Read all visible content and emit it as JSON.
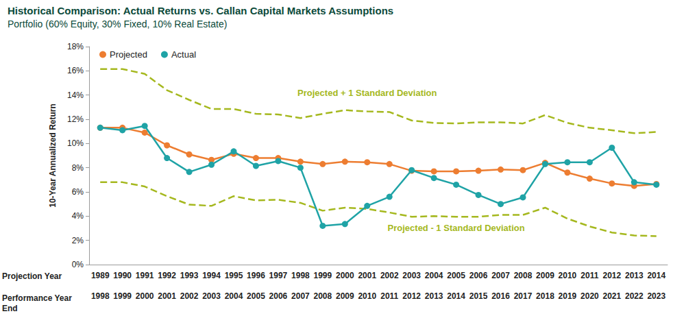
{
  "chart_data": {
    "type": "line",
    "title": "Historical Comparison: Actual Returns vs. Callan Capital Markets Assumptions",
    "subtitle": "Portfolio (60% Equity, 30% Fixed, 10% Real Estate)",
    "y_label": "10-Year Annualized Return",
    "x_row_labels": [
      "Projection Year",
      "Performance Year End"
    ],
    "categories": [
      "1989",
      "1990",
      "1991",
      "1992",
      "1993",
      "1994",
      "1995",
      "1996",
      "1997",
      "1998",
      "1999",
      "2000",
      "2001",
      "2002",
      "2003",
      "2004",
      "2005",
      "2006",
      "2007",
      "2008",
      "2009",
      "2010",
      "2011",
      "2012",
      "2013",
      "2014"
    ],
    "performance_years": [
      "1998",
      "1999",
      "2000",
      "2001",
      "2002",
      "2003",
      "2004",
      "2005",
      "2006",
      "2007",
      "2008",
      "2009",
      "2010",
      "2011",
      "2012",
      "2013",
      "2014",
      "2015",
      "2016",
      "2017",
      "2018",
      "2019",
      "2020",
      "2021",
      "2022",
      "2023"
    ],
    "series": [
      {
        "name": "Projected",
        "color": "#ED7D31",
        "marker": "circle",
        "line_style": "solid",
        "values": [
          11.3,
          11.3,
          10.9,
          9.85,
          9.1,
          8.65,
          9.15,
          8.8,
          8.8,
          8.5,
          8.3,
          8.5,
          8.45,
          8.3,
          7.75,
          7.7,
          7.7,
          7.75,
          7.85,
          7.8,
          8.4,
          7.6,
          7.1,
          6.7,
          6.5,
          6.65
        ]
      },
      {
        "name": "Actual",
        "color": "#1FA3A6",
        "marker": "circle",
        "line_style": "solid",
        "values": [
          11.3,
          11.1,
          11.45,
          8.8,
          7.65,
          8.25,
          9.35,
          8.15,
          8.55,
          8.0,
          3.2,
          3.35,
          4.85,
          5.6,
          7.8,
          7.15,
          6.6,
          5.75,
          5.0,
          5.55,
          8.3,
          8.45,
          8.45,
          9.65,
          6.8,
          6.6
        ]
      },
      {
        "name": "Projected + 1 Standard Deviation",
        "color": "#A5B81E",
        "marker": "none",
        "line_style": "dashed",
        "values": [
          16.15,
          16.15,
          15.75,
          14.4,
          13.6,
          12.85,
          12.85,
          12.45,
          12.4,
          12.1,
          12.45,
          12.75,
          12.65,
          12.6,
          11.9,
          11.7,
          11.65,
          11.75,
          11.75,
          11.65,
          12.35,
          11.7,
          11.3,
          11.1,
          10.85,
          10.95
        ]
      },
      {
        "name": "Projected - 1 Standard Deviation",
        "color": "#A5B81E",
        "marker": "none",
        "line_style": "dashed",
        "values": [
          6.8,
          6.8,
          6.45,
          5.65,
          4.95,
          4.85,
          5.65,
          5.3,
          5.35,
          5.1,
          4.45,
          4.7,
          4.6,
          4.3,
          3.95,
          4.0,
          3.95,
          3.95,
          4.1,
          4.1,
          4.7,
          3.8,
          3.15,
          2.65,
          2.4,
          2.35
        ]
      }
    ],
    "annotations": [
      {
        "text": "Projected + 1 Standard Deviation",
        "x": "2001",
        "y": 14.2,
        "color": "#A5B81E"
      },
      {
        "text": "Projected - 1 Standard Deviation",
        "x": "2005",
        "y": 3.05,
        "color": "#A5B81E"
      }
    ],
    "ylim": [
      0,
      18
    ],
    "yticks": [
      {
        "value": 0,
        "label": "0%"
      },
      {
        "value": 2,
        "label": "2%"
      },
      {
        "value": 4,
        "label": "4%"
      },
      {
        "value": 6,
        "label": "6%"
      },
      {
        "value": 8,
        "label": "8%"
      },
      {
        "value": 10,
        "label": "10%"
      },
      {
        "value": 12,
        "label": "12%"
      },
      {
        "value": 14,
        "label": "14%"
      },
      {
        "value": 16,
        "label": "16%"
      },
      {
        "value": 18,
        "label": "18%"
      }
    ],
    "grid": false,
    "legend": "upper left"
  }
}
